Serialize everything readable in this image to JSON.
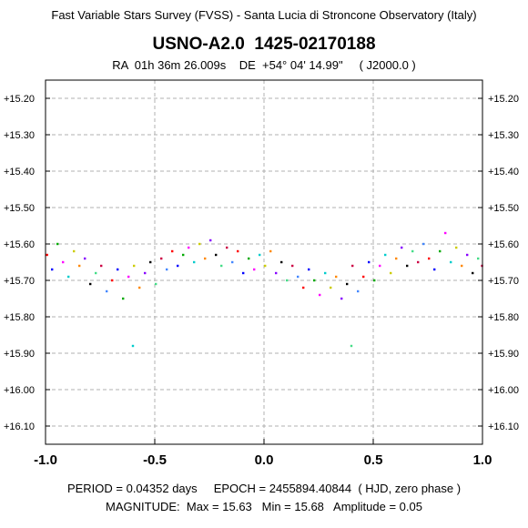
{
  "header": {
    "survey": "Fast Variable Stars Survey (FVSS) - Santa Lucia di Stroncone Observatory (Italy)",
    "star": "USNO-A2.0  1425-02170188",
    "coords": "RA  01h 36m 26.009s    DE  +54° 04' 14.99\"     ( J2000.0 )"
  },
  "footer": {
    "line1": "PERIOD = 0.04352 days     EPOCH = 2455894.40844  ( HJD, zero phase )",
    "line2": "MAGNITUDE:  Max = 15.63   Min = 15.68   Amplitude = 0.05"
  },
  "chart_data": {
    "type": "scatter",
    "title": "USNO-A2.0  1425-02170188",
    "xlabel": "",
    "ylabel": "",
    "xlim": [
      -1.0,
      1.0
    ],
    "ylim": [
      15.15,
      16.15
    ],
    "y_inverted": true,
    "grid": true,
    "x_ticks": [
      "-1.0",
      "-0.5",
      "0.0",
      "0.5",
      "1.0"
    ],
    "x_tick_values": [
      -1.0,
      -0.5,
      0.0,
      0.5,
      1.0
    ],
    "y_ticks": [
      "+15.20",
      "+15.30",
      "+15.40",
      "+15.50",
      "+15.60",
      "+15.70",
      "+15.80",
      "+15.90",
      "+16.00",
      "+16.10"
    ],
    "y_tick_values": [
      15.2,
      15.3,
      15.4,
      15.5,
      15.6,
      15.7,
      15.8,
      15.9,
      16.0,
      16.1
    ],
    "period_days": 0.04352,
    "epoch_hjd": 2455894.40844,
    "mag_max": 15.63,
    "mag_min": 15.68,
    "amplitude": 0.05,
    "series_colors": [
      "#ff0000",
      "#0000ff",
      "#00aa00",
      "#ff00ff",
      "#00cccc",
      "#cccc00",
      "#ff8800",
      "#8800ff",
      "#000000",
      "#44dd88",
      "#cc0044",
      "#4488ff"
    ],
    "points": [
      [
        -0.993,
        15.63
      ],
      [
        -0.97,
        15.67
      ],
      [
        -0.945,
        15.6
      ],
      [
        -0.92,
        15.65
      ],
      [
        -0.895,
        15.69
      ],
      [
        -0.87,
        15.62
      ],
      [
        -0.845,
        15.66
      ],
      [
        -0.82,
        15.64
      ],
      [
        -0.795,
        15.71
      ],
      [
        -0.77,
        15.68
      ],
      [
        -0.745,
        15.66
      ],
      [
        -0.72,
        15.73
      ],
      [
        -0.695,
        15.7
      ],
      [
        -0.67,
        15.67
      ],
      [
        -0.645,
        15.75
      ],
      [
        -0.62,
        15.69
      ],
      [
        -0.6,
        15.88
      ],
      [
        -0.595,
        15.66
      ],
      [
        -0.57,
        15.72
      ],
      [
        -0.545,
        15.68
      ],
      [
        -0.52,
        15.65
      ],
      [
        -0.495,
        15.71
      ],
      [
        -0.47,
        15.64
      ],
      [
        -0.445,
        15.67
      ],
      [
        -0.42,
        15.62
      ],
      [
        -0.395,
        15.66
      ],
      [
        -0.37,
        15.63
      ],
      [
        -0.345,
        15.61
      ],
      [
        -0.32,
        15.65
      ],
      [
        -0.295,
        15.6
      ],
      [
        -0.27,
        15.64
      ],
      [
        -0.245,
        15.59
      ],
      [
        -0.22,
        15.63
      ],
      [
        -0.195,
        15.66
      ],
      [
        -0.17,
        15.61
      ],
      [
        -0.145,
        15.65
      ],
      [
        -0.12,
        15.62
      ],
      [
        -0.095,
        15.68
      ],
      [
        -0.07,
        15.64
      ],
      [
        -0.045,
        15.67
      ],
      [
        -0.02,
        15.63
      ],
      [
        0.005,
        15.66
      ],
      [
        0.03,
        15.62
      ],
      [
        0.055,
        15.68
      ],
      [
        0.08,
        15.65
      ],
      [
        0.105,
        15.7
      ],
      [
        0.13,
        15.66
      ],
      [
        0.155,
        15.69
      ],
      [
        0.18,
        15.72
      ],
      [
        0.205,
        15.67
      ],
      [
        0.23,
        15.7
      ],
      [
        0.255,
        15.74
      ],
      [
        0.28,
        15.68
      ],
      [
        0.305,
        15.72
      ],
      [
        0.33,
        15.69
      ],
      [
        0.355,
        15.75
      ],
      [
        0.38,
        15.71
      ],
      [
        0.4,
        15.88
      ],
      [
        0.405,
        15.66
      ],
      [
        0.43,
        15.73
      ],
      [
        0.455,
        15.69
      ],
      [
        0.48,
        15.65
      ],
      [
        0.505,
        15.7
      ],
      [
        0.53,
        15.66
      ],
      [
        0.555,
        15.63
      ],
      [
        0.58,
        15.68
      ],
      [
        0.605,
        15.64
      ],
      [
        0.63,
        15.61
      ],
      [
        0.655,
        15.66
      ],
      [
        0.68,
        15.62
      ],
      [
        0.705,
        15.65
      ],
      [
        0.73,
        15.6
      ],
      [
        0.755,
        15.64
      ],
      [
        0.78,
        15.67
      ],
      [
        0.805,
        15.62
      ],
      [
        0.83,
        15.57
      ],
      [
        0.855,
        15.65
      ],
      [
        0.88,
        15.61
      ],
      [
        0.905,
        15.66
      ],
      [
        0.93,
        15.63
      ],
      [
        0.955,
        15.68
      ],
      [
        0.98,
        15.64
      ],
      [
        0.998,
        15.66
      ]
    ]
  }
}
